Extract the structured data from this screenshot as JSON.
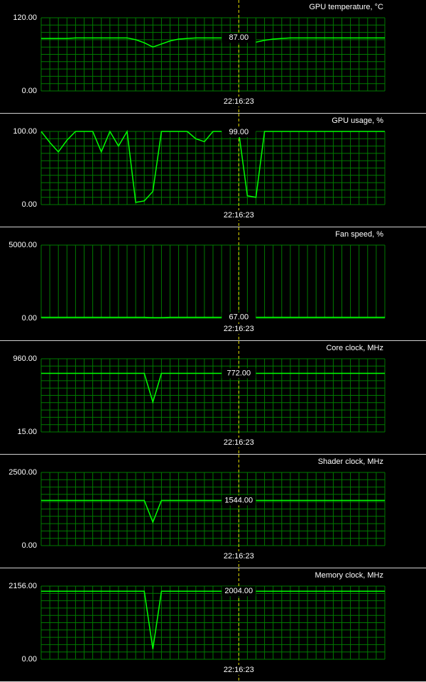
{
  "chart_data": [
    {
      "type": "line",
      "title": "GPU temperature, °C",
      "grid": "both",
      "categories": [
        null,
        null,
        null,
        null,
        null,
        null,
        null,
        null,
        null,
        null,
        null,
        null,
        null,
        null,
        null,
        null,
        null,
        null,
        null,
        null,
        null,
        null,
        null,
        "22:16:23",
        null,
        null,
        null,
        null,
        null,
        null,
        null,
        null,
        null,
        null,
        null,
        null,
        null,
        null,
        null,
        null,
        null
      ],
      "ylim": [
        0,
        120
      ],
      "yticks": [
        {
          "value": 0,
          "label": "0.00"
        },
        {
          "value": 120,
          "label": "120.00"
        }
      ],
      "series": [
        {
          "color": "#00ff00",
          "values": [
            86,
            86,
            86,
            86,
            87,
            87,
            87,
            87,
            87,
            87,
            87,
            84,
            79,
            72,
            77,
            82,
            85,
            86,
            87,
            87,
            87,
            87,
            87,
            87,
            85,
            80,
            83,
            85,
            86,
            87,
            87,
            87,
            87,
            87,
            87,
            87,
            87,
            87,
            87,
            87,
            87
          ],
          "value_labels": [
            null,
            null,
            null,
            null,
            null,
            null,
            null,
            null,
            null,
            null,
            null,
            null,
            null,
            null,
            null,
            null,
            null,
            null,
            null,
            null,
            null,
            null,
            null,
            "87.00",
            null,
            null,
            null,
            null,
            null,
            null,
            null,
            null,
            null,
            null,
            null,
            null,
            null,
            null,
            null,
            null,
            null
          ]
        }
      ]
    },
    {
      "type": "line",
      "title": "GPU usage, %",
      "grid": "both",
      "categories": [
        null,
        null,
        null,
        null,
        null,
        null,
        null,
        null,
        null,
        null,
        null,
        null,
        null,
        null,
        null,
        null,
        null,
        null,
        null,
        null,
        null,
        null,
        null,
        "22:16:23",
        null,
        null,
        null,
        null,
        null,
        null,
        null,
        null,
        null,
        null,
        null,
        null,
        null,
        null,
        null,
        null,
        null
      ],
      "ylim": [
        0,
        100
      ],
      "yticks": [
        {
          "value": 0,
          "label": "0.00"
        },
        {
          "value": 100,
          "label": "100.00"
        }
      ],
      "series": [
        {
          "color": "#00ff00",
          "values": [
            100,
            85,
            72,
            88,
            100,
            100,
            100,
            72,
            100,
            80,
            100,
            3,
            5,
            18,
            100,
            100,
            100,
            100,
            90,
            86,
            100,
            100,
            100,
            99,
            12,
            10,
            100,
            100,
            100,
            100,
            100,
            100,
            100,
            100,
            100,
            100,
            100,
            100,
            100,
            100,
            100
          ],
          "value_labels": [
            null,
            null,
            null,
            null,
            null,
            null,
            null,
            null,
            null,
            null,
            null,
            null,
            null,
            null,
            null,
            null,
            null,
            null,
            null,
            null,
            null,
            null,
            null,
            "99.00",
            null,
            null,
            null,
            null,
            null,
            null,
            null,
            null,
            null,
            null,
            null,
            null,
            null,
            null,
            null,
            null,
            null
          ]
        }
      ]
    },
    {
      "type": "line",
      "title": "Fan speed, %",
      "grid": "x",
      "categories": [
        null,
        null,
        null,
        null,
        null,
        null,
        null,
        null,
        null,
        null,
        null,
        null,
        null,
        null,
        null,
        null,
        null,
        null,
        null,
        null,
        null,
        null,
        null,
        "22:16:23",
        null,
        null,
        null,
        null,
        null,
        null,
        null,
        null,
        null,
        null,
        null,
        null,
        null,
        null,
        null,
        null,
        null
      ],
      "ylim": [
        0,
        5000
      ],
      "yticks": [
        {
          "value": 0,
          "label": "0.00"
        },
        {
          "value": 5000,
          "label": "5000.00"
        }
      ],
      "series": [
        {
          "color": "#00ff00",
          "values": [
            67,
            67,
            67,
            67,
            67,
            67,
            67,
            67,
            67,
            67,
            67,
            67,
            67,
            40,
            40,
            67,
            67,
            67,
            67,
            67,
            67,
            67,
            67,
            67,
            67,
            67,
            67,
            67,
            67,
            67,
            67,
            67,
            67,
            67,
            67,
            67,
            67,
            67,
            67,
            67,
            67
          ],
          "value_labels": [
            null,
            null,
            null,
            null,
            null,
            null,
            null,
            null,
            null,
            null,
            null,
            null,
            null,
            null,
            null,
            null,
            null,
            null,
            null,
            null,
            null,
            null,
            null,
            "67.00",
            null,
            null,
            null,
            null,
            null,
            null,
            null,
            null,
            null,
            null,
            null,
            null,
            null,
            null,
            null,
            null,
            null
          ]
        }
      ]
    },
    {
      "type": "line",
      "title": "Core clock, MHz",
      "grid": "both",
      "categories": [
        null,
        null,
        null,
        null,
        null,
        null,
        null,
        null,
        null,
        null,
        null,
        null,
        null,
        null,
        null,
        null,
        null,
        null,
        null,
        null,
        null,
        null,
        null,
        "22:16:23",
        null,
        null,
        null,
        null,
        null,
        null,
        null,
        null,
        null,
        null,
        null,
        null,
        null,
        null,
        null,
        null,
        null
      ],
      "ylim": [
        15,
        960
      ],
      "yticks": [
        {
          "value": 15,
          "label": "15.00"
        },
        {
          "value": 960,
          "label": "960.00"
        }
      ],
      "series": [
        {
          "color": "#00ff00",
          "values": [
            772,
            772,
            772,
            772,
            772,
            772,
            772,
            772,
            772,
            772,
            772,
            772,
            772,
            400,
            772,
            772,
            772,
            772,
            772,
            772,
            772,
            772,
            772,
            772,
            772,
            772,
            772,
            772,
            772,
            772,
            772,
            772,
            772,
            772,
            772,
            772,
            772,
            772,
            772,
            772,
            772
          ],
          "value_labels": [
            null,
            null,
            null,
            null,
            null,
            null,
            null,
            null,
            null,
            null,
            null,
            null,
            null,
            null,
            null,
            null,
            null,
            null,
            null,
            null,
            null,
            null,
            null,
            "772.00",
            null,
            null,
            null,
            null,
            null,
            null,
            null,
            null,
            null,
            null,
            null,
            null,
            null,
            null,
            null,
            null,
            null
          ]
        }
      ]
    },
    {
      "type": "line",
      "title": "Shader clock, MHz",
      "grid": "both",
      "categories": [
        null,
        null,
        null,
        null,
        null,
        null,
        null,
        null,
        null,
        null,
        null,
        null,
        null,
        null,
        null,
        null,
        null,
        null,
        null,
        null,
        null,
        null,
        null,
        "22:16:23",
        null,
        null,
        null,
        null,
        null,
        null,
        null,
        null,
        null,
        null,
        null,
        null,
        null,
        null,
        null,
        null,
        null
      ],
      "ylim": [
        0,
        2500
      ],
      "yticks": [
        {
          "value": 0,
          "label": "0.00"
        },
        {
          "value": 2500,
          "label": "2500.00"
        }
      ],
      "series": [
        {
          "color": "#00ff00",
          "values": [
            1544,
            1544,
            1544,
            1544,
            1544,
            1544,
            1544,
            1544,
            1544,
            1544,
            1544,
            1544,
            1544,
            800,
            1544,
            1544,
            1544,
            1544,
            1544,
            1544,
            1544,
            1544,
            1544,
            1544,
            1544,
            1544,
            1544,
            1544,
            1544,
            1544,
            1544,
            1544,
            1544,
            1544,
            1544,
            1544,
            1544,
            1544,
            1544,
            1544,
            1544
          ],
          "value_labels": [
            null,
            null,
            null,
            null,
            null,
            null,
            null,
            null,
            null,
            null,
            null,
            null,
            null,
            null,
            null,
            null,
            null,
            null,
            null,
            null,
            null,
            null,
            null,
            "1544.00",
            null,
            null,
            null,
            null,
            null,
            null,
            null,
            null,
            null,
            null,
            null,
            null,
            null,
            null,
            null,
            null,
            null
          ]
        }
      ]
    },
    {
      "type": "line",
      "title": "Memory clock, MHz",
      "grid": "both",
      "categories": [
        null,
        null,
        null,
        null,
        null,
        null,
        null,
        null,
        null,
        null,
        null,
        null,
        null,
        null,
        null,
        null,
        null,
        null,
        null,
        null,
        null,
        null,
        null,
        "22:16:23",
        null,
        null,
        null,
        null,
        null,
        null,
        null,
        null,
        null,
        null,
        null,
        null,
        null,
        null,
        null,
        null,
        null
      ],
      "ylim": [
        0,
        2156
      ],
      "yticks": [
        {
          "value": 0,
          "label": "0.00"
        },
        {
          "value": 2156,
          "label": "2156.00"
        }
      ],
      "series": [
        {
          "color": "#00ff00",
          "values": [
            2004,
            2004,
            2004,
            2004,
            2004,
            2004,
            2004,
            2004,
            2004,
            2004,
            2004,
            2004,
            2004,
            300,
            2004,
            2004,
            2004,
            2004,
            2004,
            2004,
            2004,
            2004,
            2004,
            2004,
            2004,
            2004,
            2004,
            2004,
            2004,
            2004,
            2004,
            2004,
            2004,
            2004,
            2004,
            2004,
            2004,
            2004,
            2004,
            2004,
            2004
          ],
          "value_labels": [
            null,
            null,
            null,
            null,
            null,
            null,
            null,
            null,
            null,
            null,
            null,
            null,
            null,
            null,
            null,
            null,
            null,
            null,
            null,
            null,
            null,
            null,
            null,
            "2004.00",
            null,
            null,
            null,
            null,
            null,
            null,
            null,
            null,
            null,
            null,
            null,
            null,
            null,
            null,
            null,
            null,
            null
          ]
        }
      ]
    }
  ]
}
